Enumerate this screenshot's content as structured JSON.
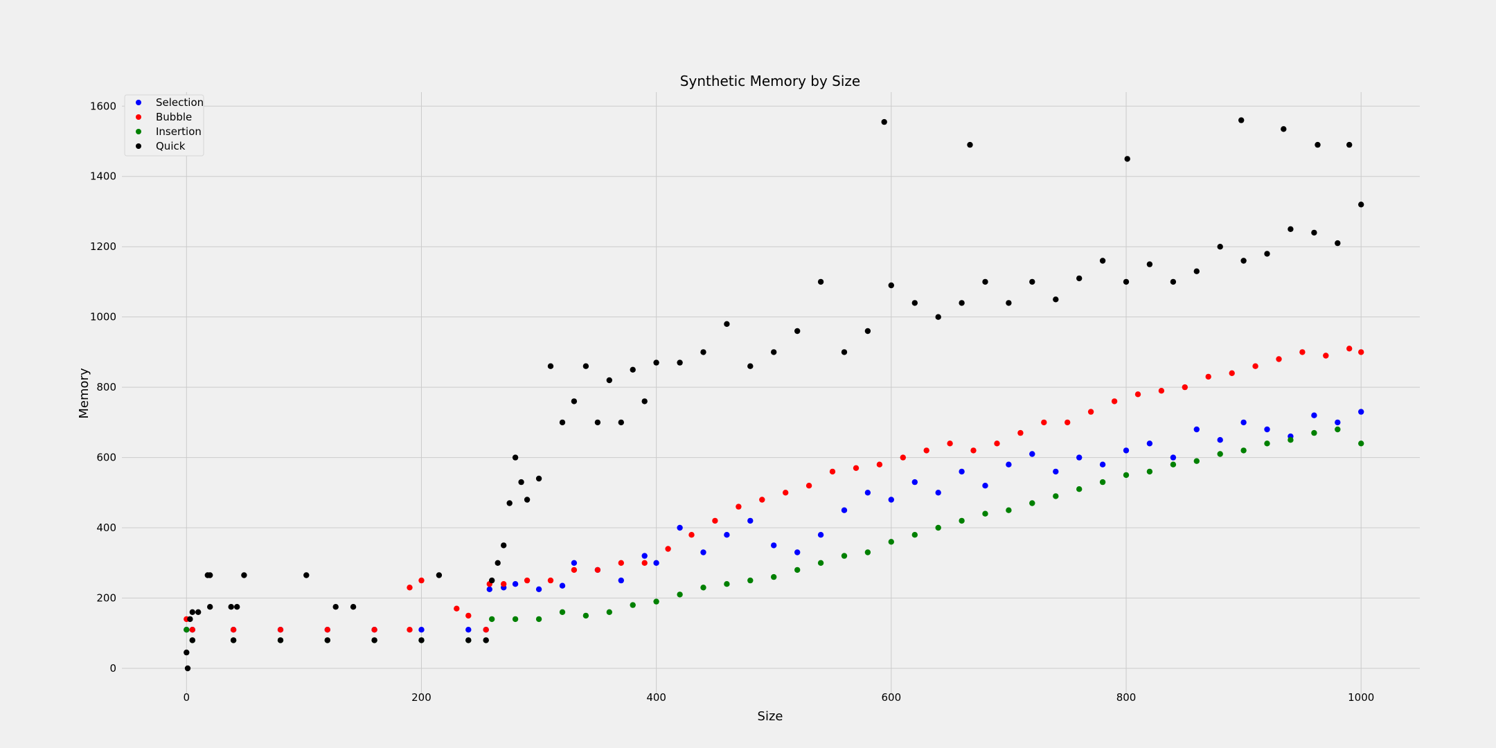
{
  "chart_data": {
    "type": "scatter",
    "title": "Synthetic Memory by Size",
    "xlabel": "Size",
    "ylabel": "Memory",
    "xlim": [
      -55,
      1050
    ],
    "ylim": [
      -75,
      1640
    ],
    "xticks": [
      0,
      200,
      400,
      600,
      800,
      1000
    ],
    "yticks": [
      0,
      200,
      400,
      600,
      800,
      1000,
      1200,
      1400,
      1600
    ],
    "grid": true,
    "legend_position": "top-left",
    "background": "#f0f0f0",
    "series": [
      {
        "name": "Selection",
        "color": "#0000ff",
        "points": [
          [
            0,
            110
          ],
          [
            5,
            110
          ],
          [
            40,
            110
          ],
          [
            80,
            110
          ],
          [
            120,
            110
          ],
          [
            160,
            110
          ],
          [
            200,
            110
          ],
          [
            240,
            110
          ],
          [
            255,
            110
          ],
          [
            258,
            225
          ],
          [
            270,
            230
          ],
          [
            280,
            240
          ],
          [
            300,
            225
          ],
          [
            320,
            235
          ],
          [
            330,
            300
          ],
          [
            350,
            280
          ],
          [
            370,
            250
          ],
          [
            390,
            320
          ],
          [
            400,
            300
          ],
          [
            420,
            400
          ],
          [
            440,
            330
          ],
          [
            460,
            380
          ],
          [
            480,
            420
          ],
          [
            500,
            350
          ],
          [
            520,
            330
          ],
          [
            540,
            380
          ],
          [
            560,
            450
          ],
          [
            580,
            500
          ],
          [
            600,
            480
          ],
          [
            620,
            530
          ],
          [
            640,
            500
          ],
          [
            660,
            560
          ],
          [
            680,
            520
          ],
          [
            700,
            580
          ],
          [
            720,
            610
          ],
          [
            740,
            560
          ],
          [
            760,
            600
          ],
          [
            780,
            580
          ],
          [
            800,
            620
          ],
          [
            820,
            640
          ],
          [
            840,
            600
          ],
          [
            860,
            680
          ],
          [
            880,
            650
          ],
          [
            900,
            700
          ],
          [
            920,
            680
          ],
          [
            940,
            660
          ],
          [
            960,
            720
          ],
          [
            980,
            700
          ],
          [
            1000,
            730
          ]
        ]
      },
      {
        "name": "Bubble",
        "color": "#ff0000",
        "points": [
          [
            0,
            140
          ],
          [
            5,
            110
          ],
          [
            40,
            110
          ],
          [
            80,
            110
          ],
          [
            120,
            110
          ],
          [
            160,
            110
          ],
          [
            190,
            110
          ],
          [
            190,
            230
          ],
          [
            200,
            250
          ],
          [
            230,
            170
          ],
          [
            240,
            150
          ],
          [
            255,
            110
          ],
          [
            258,
            240
          ],
          [
            270,
            240
          ],
          [
            290,
            250
          ],
          [
            310,
            250
          ],
          [
            330,
            280
          ],
          [
            350,
            280
          ],
          [
            370,
            300
          ],
          [
            390,
            300
          ],
          [
            410,
            340
          ],
          [
            430,
            380
          ],
          [
            450,
            420
          ],
          [
            470,
            460
          ],
          [
            490,
            480
          ],
          [
            510,
            500
          ],
          [
            530,
            520
          ],
          [
            550,
            560
          ],
          [
            570,
            570
          ],
          [
            590,
            580
          ],
          [
            610,
            600
          ],
          [
            630,
            620
          ],
          [
            650,
            640
          ],
          [
            670,
            620
          ],
          [
            690,
            640
          ],
          [
            710,
            670
          ],
          [
            730,
            700
          ],
          [
            750,
            700
          ],
          [
            770,
            730
          ],
          [
            790,
            760
          ],
          [
            810,
            780
          ],
          [
            830,
            790
          ],
          [
            850,
            800
          ],
          [
            870,
            830
          ],
          [
            890,
            840
          ],
          [
            910,
            860
          ],
          [
            930,
            880
          ],
          [
            950,
            900
          ],
          [
            970,
            890
          ],
          [
            990,
            910
          ],
          [
            1000,
            900
          ]
        ]
      },
      {
        "name": "Insertion",
        "color": "#008000",
        "points": [
          [
            0,
            110
          ],
          [
            5,
            80
          ],
          [
            40,
            80
          ],
          [
            80,
            80
          ],
          [
            120,
            80
          ],
          [
            160,
            80
          ],
          [
            200,
            80
          ],
          [
            240,
            80
          ],
          [
            255,
            80
          ],
          [
            260,
            140
          ],
          [
            280,
            140
          ],
          [
            300,
            140
          ],
          [
            320,
            160
          ],
          [
            340,
            150
          ],
          [
            360,
            160
          ],
          [
            380,
            180
          ],
          [
            400,
            190
          ],
          [
            420,
            210
          ],
          [
            440,
            230
          ],
          [
            460,
            240
          ],
          [
            480,
            250
          ],
          [
            500,
            260
          ],
          [
            520,
            280
          ],
          [
            540,
            300
          ],
          [
            560,
            320
          ],
          [
            580,
            330
          ],
          [
            600,
            360
          ],
          [
            620,
            380
          ],
          [
            640,
            400
          ],
          [
            660,
            420
          ],
          [
            680,
            440
          ],
          [
            700,
            450
          ],
          [
            720,
            470
          ],
          [
            740,
            490
          ],
          [
            760,
            510
          ],
          [
            780,
            530
          ],
          [
            800,
            550
          ],
          [
            820,
            560
          ],
          [
            840,
            580
          ],
          [
            860,
            590
          ],
          [
            880,
            610
          ],
          [
            900,
            620
          ],
          [
            920,
            640
          ],
          [
            940,
            650
          ],
          [
            960,
            670
          ],
          [
            980,
            680
          ],
          [
            1000,
            640
          ]
        ]
      },
      {
        "name": "Quick",
        "color": "#000000",
        "points": [
          [
            0,
            45
          ],
          [
            1,
            0
          ],
          [
            3,
            140
          ],
          [
            5,
            160
          ],
          [
            10,
            160
          ],
          [
            18,
            265
          ],
          [
            20,
            265
          ],
          [
            20,
            175
          ],
          [
            38,
            175
          ],
          [
            43,
            175
          ],
          [
            49,
            265
          ],
          [
            102,
            265
          ],
          [
            127,
            175
          ],
          [
            142,
            175
          ],
          [
            215,
            265
          ],
          [
            5,
            80
          ],
          [
            40,
            80
          ],
          [
            80,
            80
          ],
          [
            120,
            80
          ],
          [
            160,
            80
          ],
          [
            200,
            80
          ],
          [
            240,
            80
          ],
          [
            255,
            80
          ],
          [
            260,
            250
          ],
          [
            265,
            300
          ],
          [
            270,
            350
          ],
          [
            275,
            470
          ],
          [
            280,
            600
          ],
          [
            285,
            530
          ],
          [
            290,
            480
          ],
          [
            300,
            540
          ],
          [
            310,
            860
          ],
          [
            320,
            700
          ],
          [
            330,
            760
          ],
          [
            340,
            860
          ],
          [
            350,
            700
          ],
          [
            360,
            820
          ],
          [
            370,
            700
          ],
          [
            380,
            850
          ],
          [
            390,
            760
          ],
          [
            400,
            870
          ],
          [
            420,
            870
          ],
          [
            440,
            900
          ],
          [
            460,
            980
          ],
          [
            480,
            860
          ],
          [
            500,
            900
          ],
          [
            520,
            960
          ],
          [
            540,
            1100
          ],
          [
            560,
            900
          ],
          [
            580,
            960
          ],
          [
            600,
            1090
          ],
          [
            620,
            1040
          ],
          [
            640,
            1000
          ],
          [
            660,
            1040
          ],
          [
            680,
            1100
          ],
          [
            700,
            1040
          ],
          [
            720,
            1100
          ],
          [
            740,
            1050
          ],
          [
            760,
            1110
          ],
          [
            780,
            1160
          ],
          [
            800,
            1100
          ],
          [
            820,
            1150
          ],
          [
            840,
            1100
          ],
          [
            860,
            1130
          ],
          [
            880,
            1200
          ],
          [
            900,
            1160
          ],
          [
            920,
            1180
          ],
          [
            940,
            1250
          ],
          [
            960,
            1240
          ],
          [
            980,
            1210
          ],
          [
            1000,
            1320
          ],
          [
            594,
            1555
          ],
          [
            667,
            1490
          ],
          [
            898,
            1560
          ],
          [
            934,
            1535
          ],
          [
            963,
            1490
          ],
          [
            990,
            1490
          ],
          [
            801,
            1450
          ]
        ]
      }
    ]
  }
}
